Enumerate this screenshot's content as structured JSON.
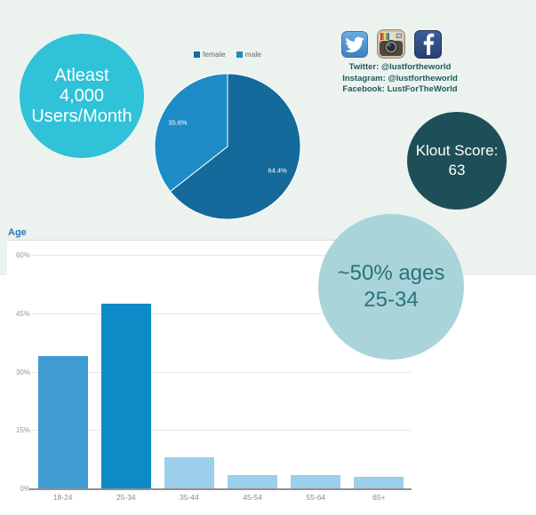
{
  "badges": {
    "users": {
      "lines": [
        "Atleast",
        "4,000",
        "Users/Month"
      ],
      "bg": "#2fc2d8",
      "color": "#ffffff"
    },
    "klout": {
      "lines": [
        "Klout Score:",
        "63"
      ],
      "bg": "#1e4f58",
      "color": "#ffffff"
    },
    "ages": {
      "lines": [
        "~50% ages",
        "25-34"
      ],
      "bg": "#a9d4d9",
      "color": "#2b727a"
    }
  },
  "social": {
    "icons": [
      "twitter-icon",
      "instagram-icon",
      "facebook-icon"
    ],
    "accounts": [
      "Twitter: @lustfortheworld",
      "Instagram: @lustfortheworld",
      "Facebook: LustForTheWorld"
    ],
    "text_color": "#1d5a5f",
    "twitter_blue": "#4f94d4",
    "facebook_blue": "#2f4d85"
  },
  "page_colors": {
    "background": "#ffffff",
    "mint_background": "#ecf3ee",
    "panel": "#ffffff"
  },
  "chart_data": [
    {
      "type": "pie",
      "labels": [
        "female",
        "male"
      ],
      "values": [
        64.4,
        35.6
      ],
      "value_labels": [
        "64.4%",
        "35.6%"
      ],
      "colors": [
        "#136a9b",
        "#1d8bc6"
      ],
      "start_angle_deg": 0,
      "direction": "clockwise",
      "legend_position": "top"
    },
    {
      "type": "bar",
      "section_title": "Age",
      "categories": [
        "18-24",
        "25-34",
        "35-44",
        "45-54",
        "55-64",
        "65+"
      ],
      "values": [
        34,
        47.5,
        8,
        3.5,
        3.5,
        3
      ],
      "bar_colors": [
        "#3e9cd2",
        "#0e8ac6",
        "#9bcfec",
        "#9bcfec",
        "#9bcfec",
        "#9bcfec"
      ],
      "yticks": [
        "0%",
        "15%",
        "30%",
        "45%",
        "60%"
      ],
      "ytick_values": [
        0,
        15,
        30,
        45,
        60
      ],
      "ylim": [
        0,
        62
      ],
      "grid": true,
      "legend_position": "none"
    }
  ]
}
